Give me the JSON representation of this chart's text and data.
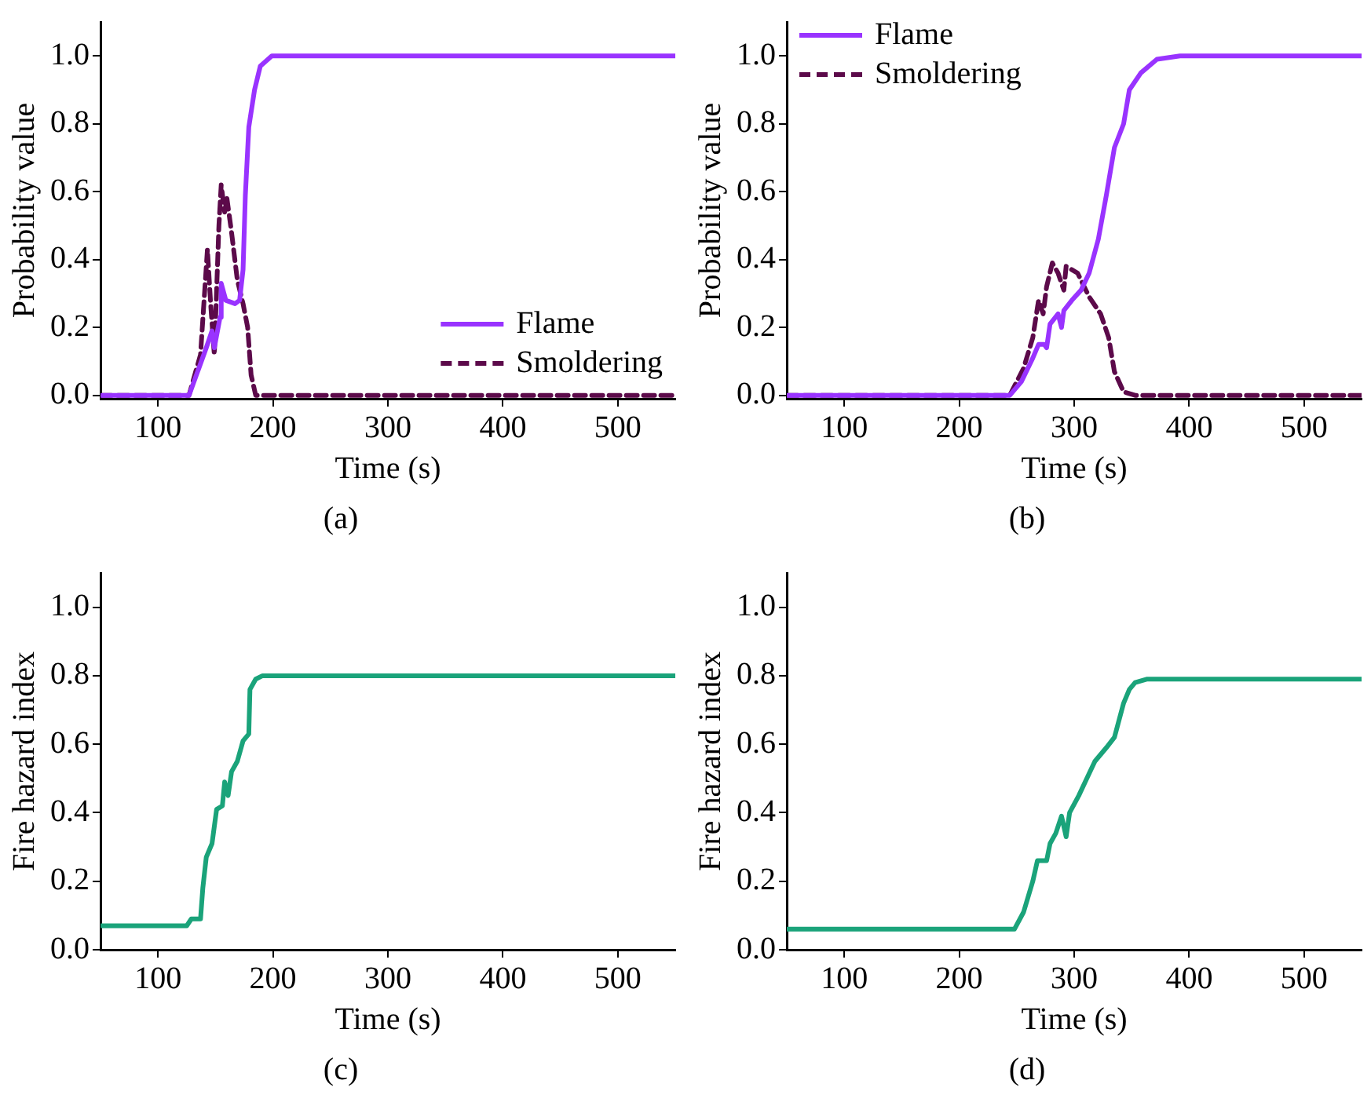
{
  "chart_data": [
    {
      "type": "line",
      "title": "(a)",
      "xlabel": "Time (s)",
      "ylabel": "Probability value",
      "xlim": [
        50,
        550
      ],
      "xticks": [
        100,
        200,
        300,
        400,
        500
      ],
      "ylim": [
        -0.01,
        1.1
      ],
      "yticks": [
        {
          "value": 0,
          "label": "0.0"
        },
        {
          "value": 0.2,
          "label": "0.2"
        },
        {
          "value": 0.4,
          "label": "0.4"
        },
        {
          "value": 0.6,
          "label": "0.6"
        },
        {
          "value": 0.8,
          "label": "0.8"
        },
        {
          "value": 1,
          "label": "1.0"
        }
      ],
      "grid": false,
      "legend": "bottom right",
      "marker": "none",
      "series": [
        {
          "name": "Flame",
          "color": "#9933ff",
          "line_style": "solid",
          "x": [
            50,
            127,
            142,
            147,
            149,
            154,
            155,
            159,
            167,
            171,
            174,
            176,
            179,
            184,
            189,
            199,
            550
          ],
          "values": [
            0,
            0,
            0.14,
            0.19,
            0.14,
            0.23,
            0.33,
            0.28,
            0.27,
            0.28,
            0.37,
            0.59,
            0.79,
            0.9,
            0.97,
            1,
            1
          ]
        },
        {
          "name": "Smoldering",
          "color": "#5c0a4a",
          "line_style": "dashed",
          "x": [
            50,
            127,
            137,
            143,
            146,
            149,
            153,
            155,
            158,
            160,
            164,
            169,
            174,
            178,
            181,
            185,
            550
          ],
          "values": [
            0,
            0,
            0.12,
            0.43,
            0.26,
            0.12,
            0.5,
            0.62,
            0.54,
            0.58,
            0.48,
            0.34,
            0.27,
            0.2,
            0.06,
            0,
            0
          ]
        }
      ]
    },
    {
      "type": "line",
      "title": "(b)",
      "xlabel": "Time (s)",
      "ylabel": "Probability value",
      "xlim": [
        50,
        550
      ],
      "xticks": [
        100,
        200,
        300,
        400,
        500
      ],
      "ylim": [
        -0.01,
        1.1
      ],
      "yticks": [
        {
          "value": 0,
          "label": "0.0"
        },
        {
          "value": 0.2,
          "label": "0.2"
        },
        {
          "value": 0.4,
          "label": "0.4"
        },
        {
          "value": 0.6,
          "label": "0.6"
        },
        {
          "value": 0.8,
          "label": "0.8"
        },
        {
          "value": 1,
          "label": "1.0"
        }
      ],
      "grid": false,
      "legend": "top left",
      "marker": "none",
      "series": [
        {
          "name": "Flame",
          "color": "#9933ff",
          "line_style": "solid",
          "x": [
            50,
            244,
            254,
            264,
            269,
            274,
            276,
            279,
            286,
            289,
            291,
            298,
            306,
            313,
            321,
            328,
            335,
            343,
            348,
            358,
            372,
            392,
            550
          ],
          "values": [
            0,
            0,
            0.04,
            0.11,
            0.15,
            0.15,
            0.14,
            0.21,
            0.24,
            0.2,
            0.25,
            0.28,
            0.31,
            0.36,
            0.46,
            0.59,
            0.73,
            0.8,
            0.9,
            0.95,
            0.99,
            1,
            1
          ]
        },
        {
          "name": "Smoldering",
          "color": "#5c0a4a",
          "line_style": "dashed",
          "x": [
            50,
            244,
            256,
            264,
            269,
            273,
            276,
            281,
            286,
            291,
            293,
            303,
            313,
            323,
            330,
            335,
            343,
            353,
            550
          ],
          "values": [
            0,
            0,
            0.08,
            0.17,
            0.28,
            0.24,
            0.32,
            0.39,
            0.36,
            0.31,
            0.38,
            0.36,
            0.29,
            0.24,
            0.17,
            0.07,
            0.01,
            0,
            0
          ]
        }
      ]
    },
    {
      "type": "line",
      "title": "(c)",
      "xlabel": "Time (s)",
      "ylabel": "Fire hazard index",
      "xlim": [
        50,
        550
      ],
      "xticks": [
        100,
        200,
        300,
        400,
        500
      ],
      "ylim": [
        0,
        1.1
      ],
      "yticks": [
        {
          "value": 0,
          "label": "0.0"
        },
        {
          "value": 0.2,
          "label": "0.2"
        },
        {
          "value": 0.4,
          "label": "0.4"
        },
        {
          "value": 0.6,
          "label": "0.6"
        },
        {
          "value": 0.8,
          "label": "0.8"
        },
        {
          "value": 1,
          "label": "1.0"
        }
      ],
      "grid": false,
      "legend": false,
      "marker": "none",
      "series": [
        {
          "color": "#1aa37a",
          "line_style": "solid",
          "x": [
            50,
            125,
            129,
            137,
            139,
            142,
            147,
            151,
            156,
            158,
            161,
            164,
            169,
            174,
            179,
            180,
            185,
            191,
            550
          ],
          "values": [
            0.07,
            0.07,
            0.09,
            0.09,
            0.18,
            0.27,
            0.31,
            0.41,
            0.42,
            0.49,
            0.45,
            0.52,
            0.55,
            0.61,
            0.63,
            0.76,
            0.79,
            0.8,
            0.8
          ]
        }
      ]
    },
    {
      "type": "line",
      "title": "(d)",
      "xlabel": "Time (s)",
      "ylabel": "Fire hazard index",
      "xlim": [
        50,
        550
      ],
      "xticks": [
        100,
        200,
        300,
        400,
        500
      ],
      "ylim": [
        0,
        1.1
      ],
      "yticks": [
        {
          "value": 0,
          "label": "0.0"
        },
        {
          "value": 0.2,
          "label": "0.2"
        },
        {
          "value": 0.4,
          "label": "0.4"
        },
        {
          "value": 0.6,
          "label": "0.6"
        },
        {
          "value": 0.8,
          "label": "0.8"
        },
        {
          "value": 1,
          "label": "1.0"
        }
      ],
      "grid": false,
      "legend": false,
      "marker": "none",
      "series": [
        {
          "color": "#1aa37a",
          "line_style": "solid",
          "x": [
            50,
            248,
            256,
            264,
            268,
            276,
            279,
            284,
            289,
            293,
            296,
            304,
            311,
            318,
            328,
            335,
            343,
            348,
            353,
            363,
            550
          ],
          "values": [
            0.06,
            0.06,
            0.11,
            0.2,
            0.26,
            0.26,
            0.31,
            0.34,
            0.39,
            0.33,
            0.4,
            0.45,
            0.5,
            0.55,
            0.59,
            0.62,
            0.72,
            0.76,
            0.78,
            0.79,
            0.79
          ]
        }
      ]
    }
  ]
}
